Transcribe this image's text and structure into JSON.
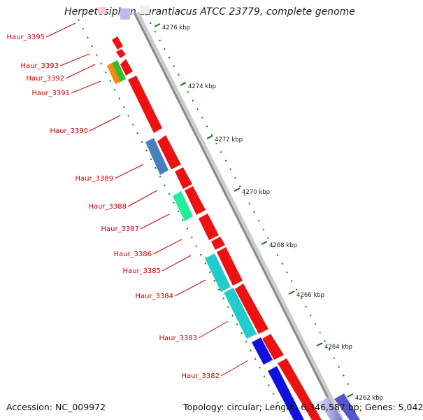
{
  "title": "Herpetosiphon aurantiacus ATCC 23779, complete genome",
  "accession_text": "Accession: NC_009972",
  "summary_text": "Topology: circular; Length: 6,346,587 bp; Genes: 5,042",
  "ticks": [
    {
      "label": "4276 kbp"
    },
    {
      "label": "4274 kbp"
    },
    {
      "label": "4272 kbp"
    },
    {
      "label": "4270 kbp"
    },
    {
      "label": "4268 kbp"
    },
    {
      "label": "4266 kbp"
    },
    {
      "label": "4264 kbp"
    },
    {
      "label": "4262 kbp"
    }
  ],
  "genes": [
    {
      "name": "Haur_3395"
    },
    {
      "name": "Haur_3393"
    },
    {
      "name": "Haur_3392"
    },
    {
      "name": "Haur_3391"
    },
    {
      "name": "Haur_3390"
    },
    {
      "name": "Haur_3389"
    },
    {
      "name": "Haur_3388"
    },
    {
      "name": "Haur_3387"
    },
    {
      "name": "Haur_3386"
    },
    {
      "name": "Haur_3385"
    },
    {
      "name": "Haur_3384"
    },
    {
      "name": "Haur_3383"
    },
    {
      "name": "Haur_3382"
    }
  ],
  "colors": {
    "forward_cds": "#ee1111",
    "reverse_cds": "#1111dd",
    "cyan": "#22cccc",
    "steel_blue": "#4a7fbf",
    "spring_green": "#22ee99",
    "orange": "#ff8800",
    "green": "#33bb33",
    "label_red": "#cc0000",
    "backbone": "#777777",
    "dotted_green": "#117711"
  }
}
